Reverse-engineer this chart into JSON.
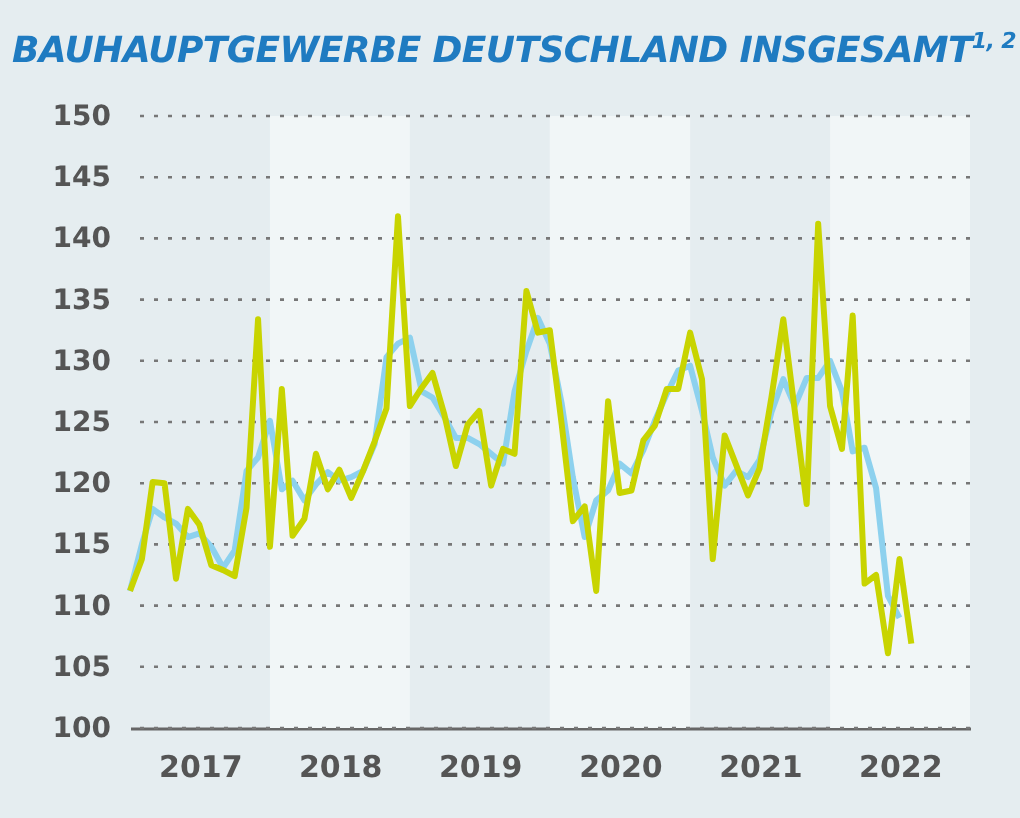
{
  "chart_data": {
    "type": "line",
    "title": "BAUHAUPTGEWERBE DEUTSCHLAND INSGESAMT$^{1, 2}$",
    "x": [
      "2017-01",
      "2017-02",
      "2017-03",
      "2017-04",
      "2017-05",
      "2017-06",
      "2017-07",
      "2017-08",
      "2017-09",
      "2017-10",
      "2017-11",
      "2017-12",
      "2018-01",
      "2018-02",
      "2018-03",
      "2018-04",
      "2018-05",
      "2018-06",
      "2018-07",
      "2018-08",
      "2018-09",
      "2018-10",
      "2018-11",
      "2018-12",
      "2019-01",
      "2019-02",
      "2019-03",
      "2019-04",
      "2019-05",
      "2019-06",
      "2019-07",
      "2019-08",
      "2019-09",
      "2019-10",
      "2019-11",
      "2019-12",
      "2020-01",
      "2020-02",
      "2020-03",
      "2020-04",
      "2020-05",
      "2020-06",
      "2020-07",
      "2020-08",
      "2020-09",
      "2020-10",
      "2020-11",
      "2020-12",
      "2021-01",
      "2021-02",
      "2021-03",
      "2021-04",
      "2021-05",
      "2021-06",
      "2021-07",
      "2021-08",
      "2021-09",
      "2021-10",
      "2021-11",
      "2021-12",
      "2022-01",
      "2022-02",
      "2022-03",
      "2022-04",
      "2022-05",
      "2022-06",
      "2022-07",
      "2022-08"
    ],
    "series": [
      {
        "color": "#8dd1ee",
        "values": [
          111.2,
          115,
          117.9,
          117.2,
          116.7,
          115.6,
          115.9,
          114.8,
          113.1,
          114.5,
          121,
          122.1,
          125.1,
          119.5,
          120.2,
          118.6,
          119.9,
          120.9,
          120.2,
          120.5,
          121,
          123.2,
          130.3,
          131.4,
          131.9,
          127.5,
          127,
          125.4,
          123.7,
          123.7,
          123.2,
          122.4,
          121.6,
          127.5,
          130.8,
          133.5,
          131.4,
          126.5,
          120.5,
          115.6,
          118.6,
          119.4,
          121.6,
          120.8,
          122.7,
          125.1,
          127.3,
          129.2,
          129.6,
          125.9,
          122.1,
          119.8,
          121,
          120.5,
          121.9,
          125.8,
          128.5,
          126.3,
          128.6,
          128.6,
          130,
          127.5,
          122.6,
          122.9,
          119.6,
          110.8,
          109,
          null
        ]
      },
      {
        "color": "#c8d400",
        "values": [
          111.2,
          113.8,
          120.1,
          120,
          112.2,
          117.9,
          116.6,
          113.3,
          112.9,
          112.4,
          118,
          133.4,
          114.8,
          127.7,
          115.7,
          117.1,
          122.4,
          119.5,
          121.1,
          118.8,
          121,
          123.4,
          126.1,
          141.8,
          126.3,
          127.8,
          129,
          125.6,
          121.4,
          124.8,
          125.9,
          119.8,
          122.8,
          122.4,
          135.7,
          132.3,
          132.5,
          124.8,
          116.9,
          118.1,
          111.2,
          126.7,
          119.2,
          119.4,
          123.5,
          124.7,
          127.7,
          127.7,
          132.3,
          128.5,
          113.8,
          123.9,
          121.5,
          119,
          121.2,
          127,
          133.4,
          125.9,
          118.3,
          141.2,
          126.3,
          122.8,
          133.7,
          111.8,
          112.5,
          106.1,
          113.8,
          106.9
        ]
      }
    ],
    "xlim": [
      "2017-01-01",
      "2023-01-01"
    ],
    "xticks": [
      {
        "value": "2017-07-02",
        "label": "2017"
      },
      {
        "value": "2018-07-02",
        "label": "2018"
      },
      {
        "value": "2019-07-02",
        "label": "2019"
      },
      {
        "value": "2020-07-02",
        "label": "2020"
      },
      {
        "value": "2021-07-02",
        "label": "2021"
      },
      {
        "value": "2022-07-02",
        "label": "2022"
      }
    ],
    "ylim": [
      100,
      150
    ],
    "yticks": [
      100,
      105,
      110,
      115,
      120,
      125,
      130,
      135,
      140,
      145,
      150
    ],
    "bands": [
      {
        "axis": "x",
        "from": "2018-01-01",
        "to": "2019-01-01",
        "color": "#f1f6f7"
      },
      {
        "axis": "x",
        "from": "2020-01-01",
        "to": "2021-01-01",
        "color": "#f1f6f7"
      },
      {
        "axis": "x",
        "from": "2022-01-01",
        "to": "2023-01-01",
        "color": "#f1f6f7"
      }
    ],
    "grid": "y",
    "marker": "none",
    "line_style": "solid"
  }
}
